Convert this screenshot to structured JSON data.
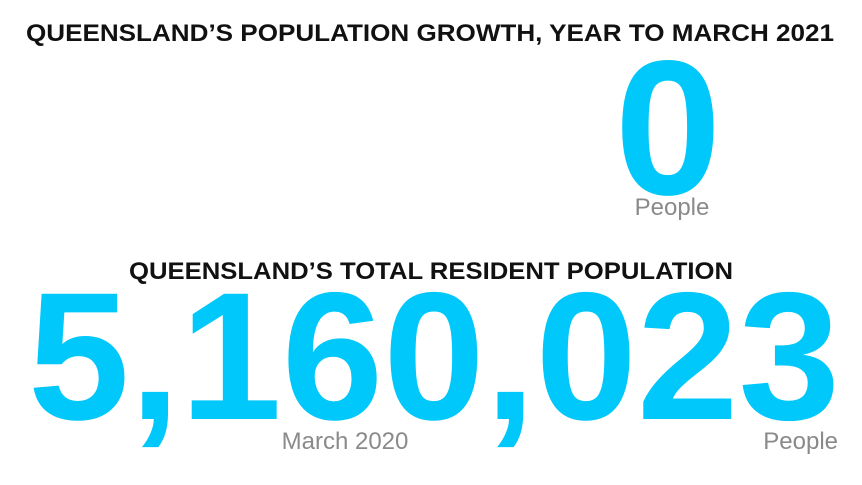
{
  "growth": {
    "title": "QUEENSLAND’S POPULATION GROWTH, YEAR TO MARCH 2021",
    "number": "0",
    "unit": "People"
  },
  "population": {
    "title": "QUEENSLAND’S TOTAL RESIDENT POPULATION",
    "number": "5,160,023",
    "date": "March 2020",
    "unit": "People"
  }
}
